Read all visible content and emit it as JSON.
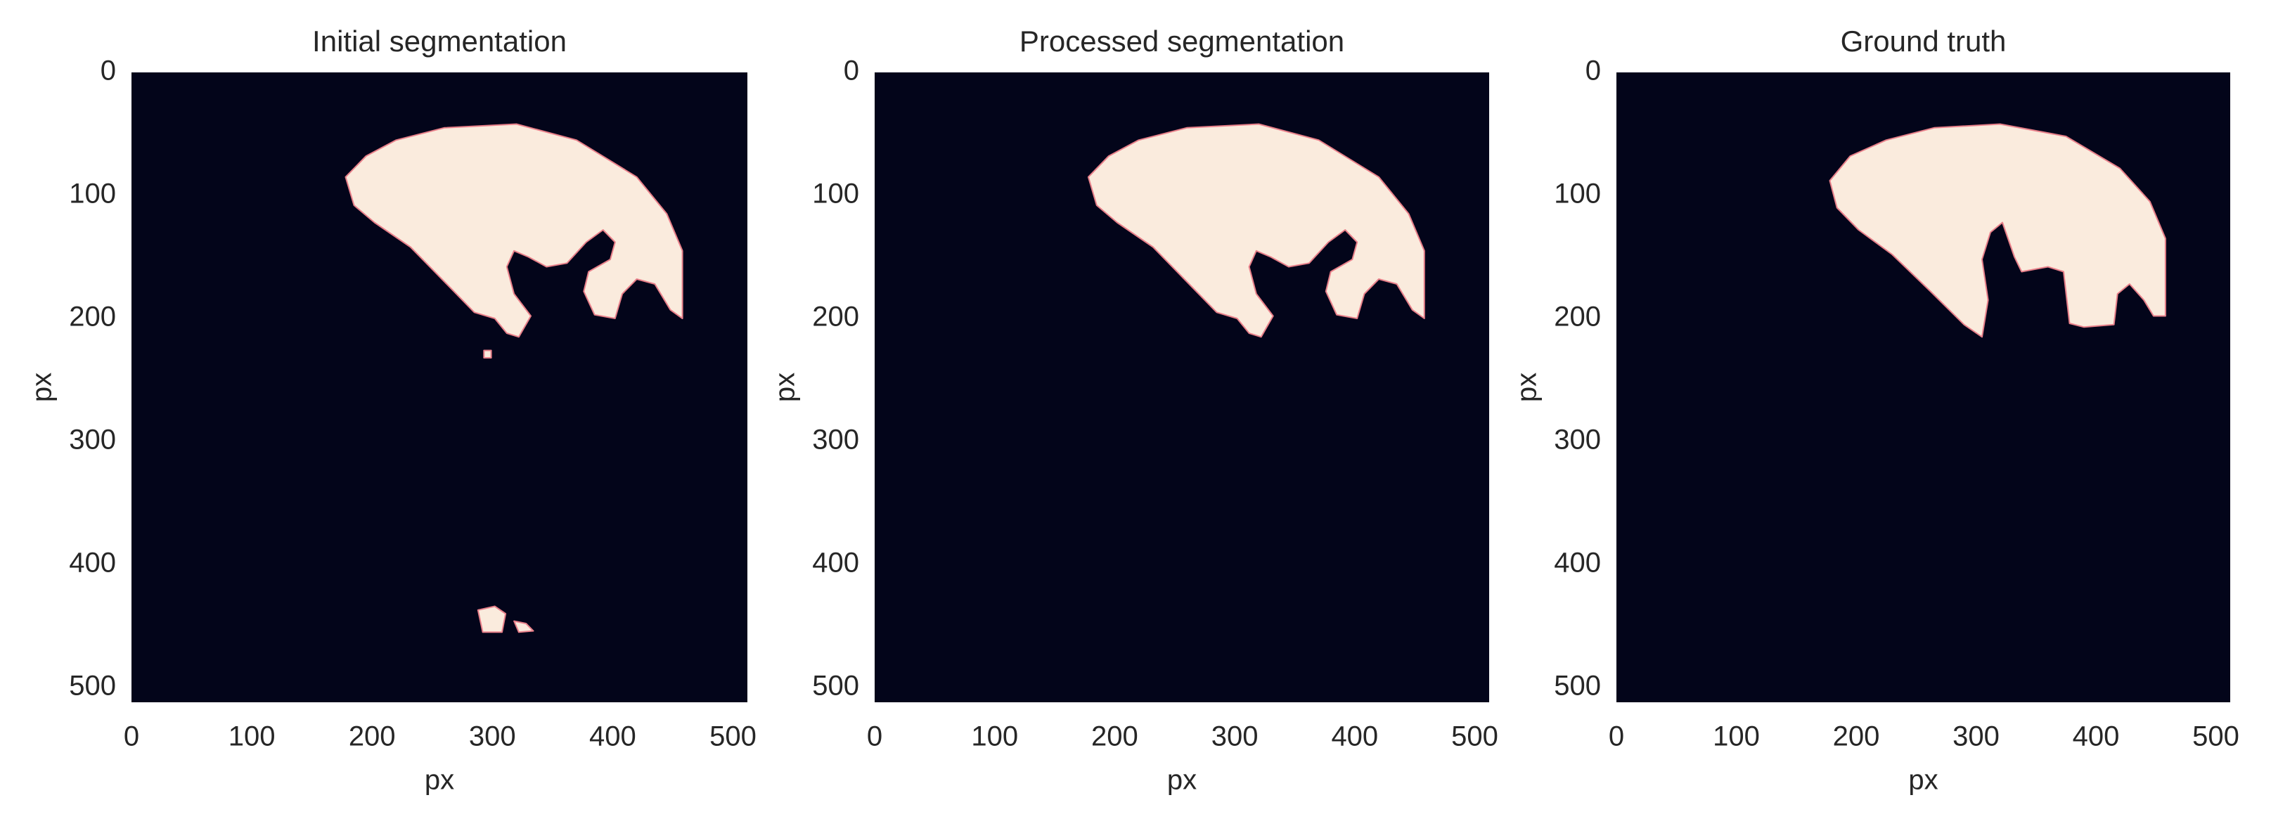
{
  "chart_data": [
    {
      "type": "image",
      "title": "Initial segmentation",
      "xlabel": "px",
      "ylabel": "px",
      "xlim": [
        0,
        512
      ],
      "ylim": [
        512,
        0
      ],
      "xticks": [
        0,
        100,
        200,
        300,
        400,
        500
      ],
      "yticks": [
        0,
        100,
        200,
        300,
        400,
        500
      ]
    },
    {
      "type": "image",
      "title": "Processed segmentation",
      "xlabel": "px",
      "ylabel": "px",
      "xlim": [
        0,
        512
      ],
      "ylim": [
        512,
        0
      ],
      "xticks": [
        0,
        100,
        200,
        300,
        400,
        500
      ],
      "yticks": [
        0,
        100,
        200,
        300,
        400,
        500
      ]
    },
    {
      "type": "image",
      "title": "Ground truth",
      "xlabel": "px",
      "ylabel": "px",
      "xlim": [
        0,
        512
      ],
      "ylim": [
        512,
        0
      ],
      "xticks": [
        0,
        100,
        200,
        300,
        400,
        500
      ],
      "yticks": [
        0,
        100,
        200,
        300,
        400,
        500
      ]
    }
  ]
}
